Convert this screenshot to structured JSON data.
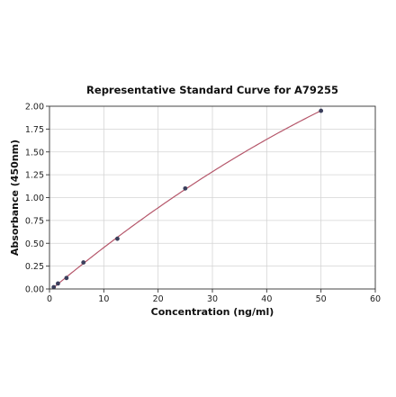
{
  "chart_data": {
    "type": "scatter",
    "title": "Representative Standard Curve for A79255",
    "xlabel": "Concentration (ng/ml)",
    "ylabel": "Absorbance (450nm)",
    "xlim": [
      0,
      60
    ],
    "ylim": [
      0,
      2.0
    ],
    "xticks": [
      0,
      10,
      20,
      30,
      40,
      50,
      60
    ],
    "yticks": [
      0.0,
      0.25,
      0.5,
      0.75,
      1.0,
      1.25,
      1.5,
      1.75,
      2.0
    ],
    "xtick_labels": [
      "0",
      "10",
      "20",
      "30",
      "40",
      "50",
      "60"
    ],
    "ytick_labels": [
      "0.00",
      "0.25",
      "0.50",
      "0.75",
      "1.00",
      "1.25",
      "1.50",
      "1.75",
      "2.00"
    ],
    "grid": true,
    "series": [
      {
        "x": [
          0.78,
          1.56,
          3.125,
          6.25,
          12.5,
          25,
          50
        ],
        "y": [
          0.02,
          0.06,
          0.12,
          0.29,
          0.55,
          1.1,
          1.95
        ],
        "fit": "curve"
      }
    ],
    "colors": {
      "points": "#3b3f5c",
      "curve": "#b5566a",
      "grid": "#d4d4d4",
      "frame": "#333333"
    }
  }
}
